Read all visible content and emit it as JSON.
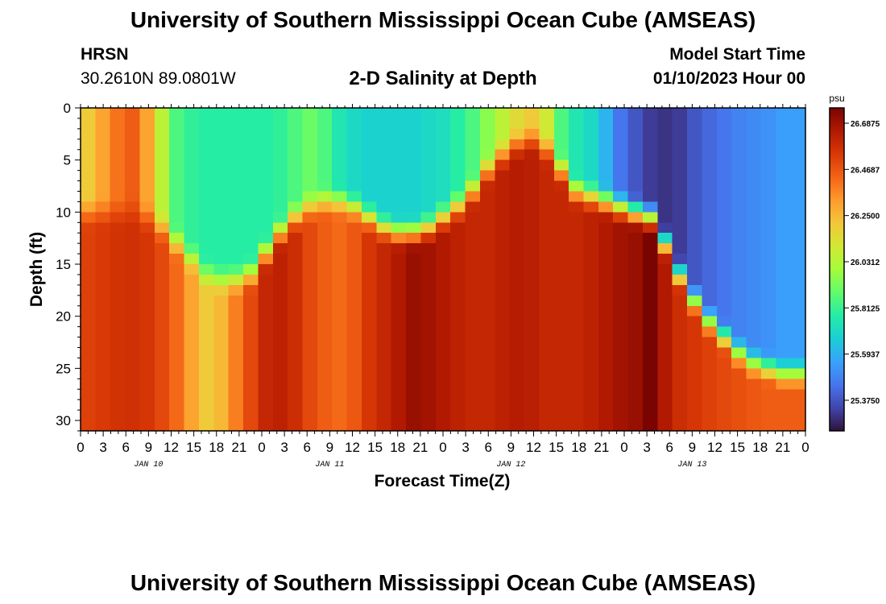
{
  "header": {
    "title": "University of Southern Mississippi Ocean Cube (AMSEAS)",
    "station": "HRSN",
    "coords": "30.2610N  89.0801W",
    "subtitle": "2-D Salinity at Depth",
    "model_start_label": "Model Start Time",
    "model_start_value": "01/10/2023 Hour 00"
  },
  "footer": {
    "title": "University of Southern Mississippi Ocean Cube (AMSEAS)"
  },
  "colors": {
    "colormap": [
      "#30123b",
      "#4145ab",
      "#4675ed",
      "#39a2fc",
      "#1bcfd4",
      "#24eca6",
      "#61fc6c",
      "#a4fc3b",
      "#d1e834",
      "#f3c63a",
      "#fe9b2d",
      "#f36315",
      "#d93806",
      "#b11901",
      "#7a0402"
    ]
  },
  "chart_data": {
    "type": "heatmap",
    "title": "2-D Salinity at Depth",
    "xlabel": "Forecast Time(Z)",
    "ylabel": "Depth (ft)",
    "x_ticks": [
      "0",
      "3",
      "6",
      "9",
      "12",
      "15",
      "18",
      "21",
      "0",
      "3",
      "6",
      "9",
      "12",
      "15",
      "18",
      "21",
      "0",
      "3",
      "6",
      "9",
      "12",
      "15",
      "18",
      "21",
      "0",
      "3",
      "6",
      "9",
      "12",
      "15",
      "18",
      "21",
      "0"
    ],
    "day_labels": [
      "JAN 10",
      "JAN 11",
      "JAN 12",
      "JAN 13"
    ],
    "x_range_hours": [
      0,
      96
    ],
    "y_ticks": [
      0,
      5,
      10,
      15,
      20,
      25,
      30
    ],
    "y_range_ft": [
      0,
      31
    ],
    "colorbar": {
      "unit": "psu",
      "min": 25.23,
      "max": 26.76,
      "tick_labels": [
        "26.6875",
        "26.4687",
        "26.2500",
        "26.0312",
        "25.8125",
        "25.5937",
        "25.3750"
      ],
      "tick_values": [
        26.6875,
        26.46875,
        26.25,
        26.03125,
        25.8125,
        25.59375,
        25.375
      ]
    },
    "surface_layer_depth_ft": [
      10,
      10,
      10,
      10,
      10.5,
      11.5,
      13,
      14.5,
      16,
      16.5,
      16.5,
      16,
      14,
      12,
      10.5,
      9.5,
      9,
      9,
      9.5,
      10.5,
      11.5,
      12,
      12,
      11.5,
      10.5,
      9.5,
      8,
      6,
      4.5,
      3.5,
      3,
      4,
      6,
      8,
      8.5,
      9,
      9.5,
      10,
      10.5,
      13,
      16,
      18.5,
      20.5,
      22,
      23.5,
      24.5,
      25,
      25.5,
      25.5
    ],
    "surface_salinity_psu": [
      26.2,
      26.3,
      26.4,
      26.45,
      26.3,
      26.05,
      25.85,
      25.8,
      25.78,
      25.78,
      25.78,
      25.78,
      25.78,
      25.8,
      25.85,
      25.9,
      25.85,
      25.75,
      25.7,
      25.68,
      25.68,
      25.68,
      25.68,
      25.7,
      25.72,
      25.78,
      25.85,
      25.95,
      26.05,
      26.15,
      26.2,
      26.1,
      25.85,
      25.75,
      25.7,
      25.6,
      25.45,
      25.38,
      25.32,
      25.3,
      25.32,
      25.38,
      25.42,
      25.45,
      25.48,
      25.5,
      25.52,
      25.55,
      25.55
    ],
    "deep_salinity_psu": [
      26.52,
      26.54,
      26.56,
      26.57,
      26.55,
      26.5,
      26.42,
      26.3,
      26.2,
      26.25,
      26.38,
      26.5,
      26.6,
      26.62,
      26.58,
      26.5,
      26.45,
      26.42,
      26.46,
      26.55,
      26.6,
      26.65,
      26.7,
      26.68,
      26.65,
      26.62,
      26.6,
      26.6,
      26.62,
      26.64,
      26.63,
      26.6,
      26.6,
      26.6,
      26.62,
      26.65,
      26.68,
      26.7,
      26.76,
      26.65,
      26.58,
      26.55,
      26.52,
      26.5,
      26.48,
      26.46,
      26.45,
      26.45,
      26.45
    ]
  }
}
